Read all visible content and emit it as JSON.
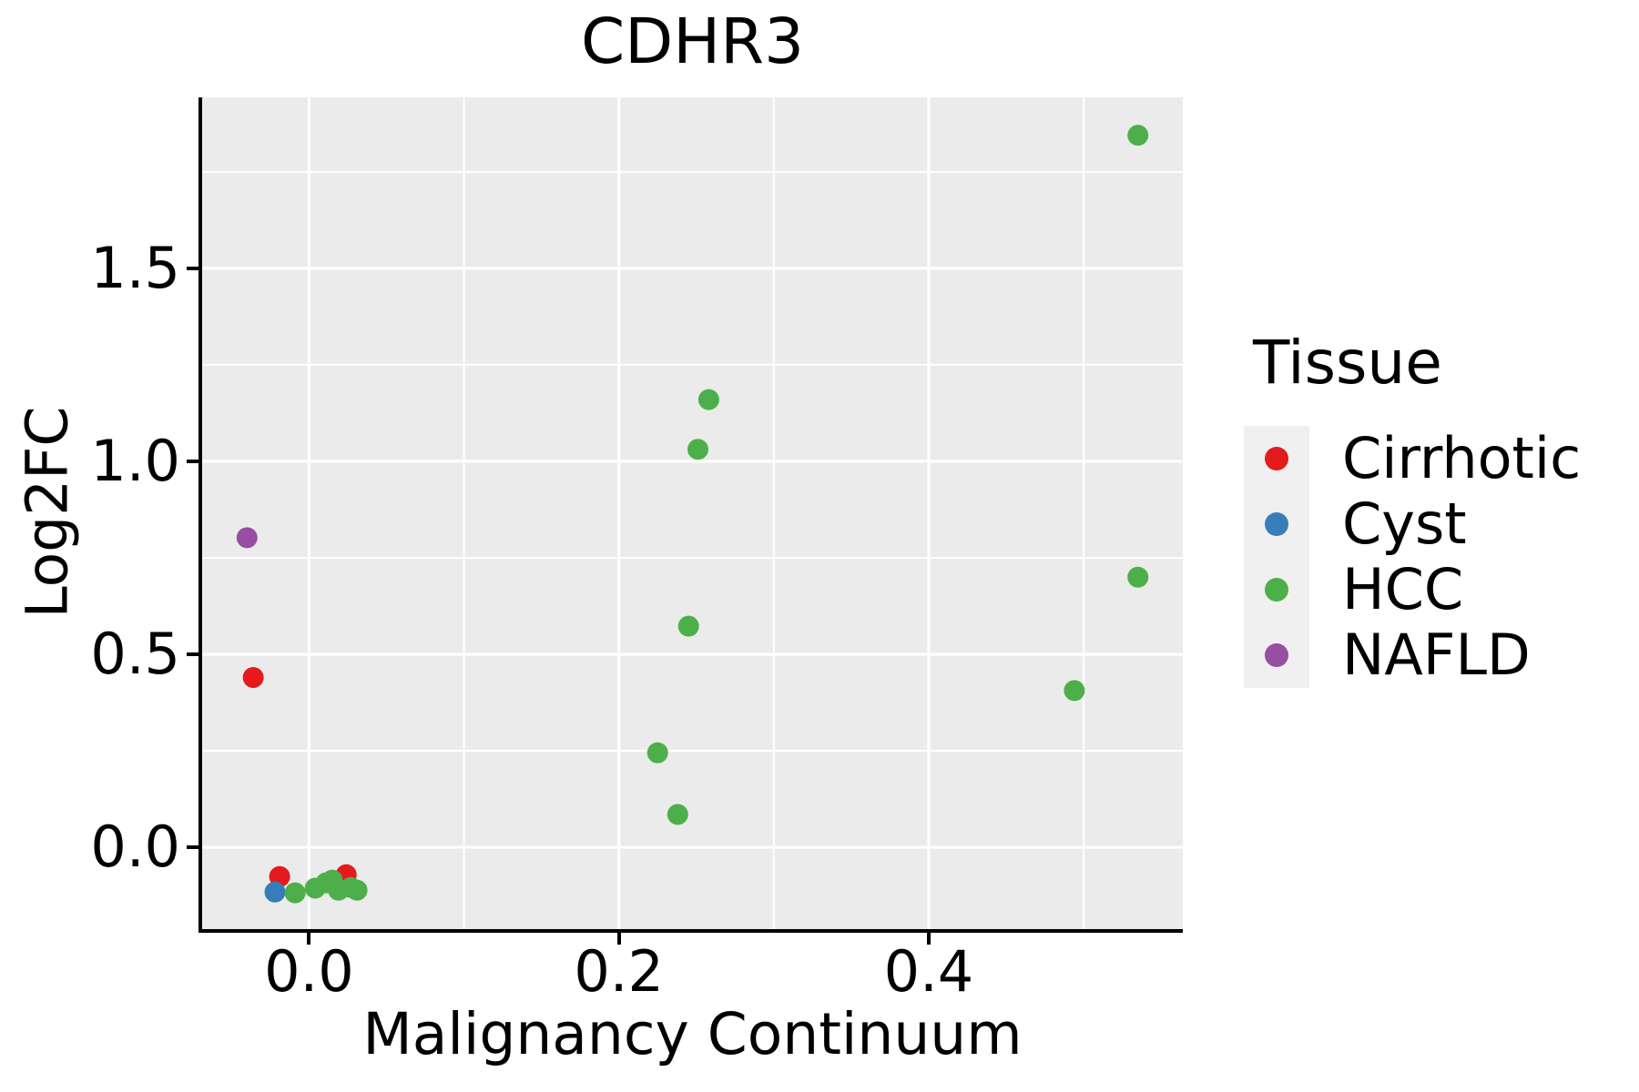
{
  "title": "CDHR3",
  "legend": {
    "title": "Tissue",
    "items": [
      {
        "label": "Cirrhotic",
        "color": "#E41A1C"
      },
      {
        "label": "Cyst",
        "color": "#377EB8"
      },
      {
        "label": "HCC",
        "color": "#4DAF4A"
      },
      {
        "label": "NAFLD",
        "color": "#984EA3"
      }
    ]
  },
  "styles": {
    "panel_bg": "#EBEBEB",
    "grid_color": "#FFFFFF",
    "legend_key_bg": "#F0F0F0",
    "spine_color": "#000000"
  },
  "chart_data": {
    "type": "scatter",
    "title": "CDHR3",
    "xlabel": "Malignancy Continuum",
    "ylabel": "Log2FC",
    "xlim": [
      -0.069,
      0.564
    ],
    "ylim": [
      -0.212,
      1.943
    ],
    "x_major_ticks": [
      0.0,
      0.2,
      0.4
    ],
    "x_tick_labels": [
      "0.0",
      "0.2",
      "0.4"
    ],
    "x_minor_ticks": [
      0.1,
      0.3,
      0.5
    ],
    "y_major_ticks": [
      0.0,
      0.5,
      1.0,
      1.5
    ],
    "y_tick_labels": [
      "0.0",
      "0.5",
      "1.0",
      "1.5"
    ],
    "y_minor_ticks": [
      0.25,
      0.75,
      1.25,
      1.75
    ],
    "grid": true,
    "legend_position": "right",
    "point_radius_px": 11.5,
    "series": [
      {
        "name": "Cirrhotic",
        "color": "#E41A1C",
        "points": [
          [
            -0.036,
            0.44
          ],
          [
            -0.019,
            -0.076
          ],
          [
            0.024,
            -0.071
          ]
        ]
      },
      {
        "name": "Cyst",
        "color": "#377EB8",
        "points": [
          [
            -0.022,
            -0.116
          ]
        ]
      },
      {
        "name": "HCC",
        "color": "#4DAF4A",
        "points": [
          [
            0.535,
            1.845
          ],
          [
            0.258,
            1.16
          ],
          [
            0.251,
            1.031
          ],
          [
            0.245,
            0.573
          ],
          [
            0.225,
            0.245
          ],
          [
            0.238,
            0.085
          ],
          [
            0.535,
            0.7
          ],
          [
            0.494,
            0.406
          ],
          [
            -0.009,
            -0.118
          ],
          [
            0.004,
            -0.106
          ],
          [
            0.011,
            -0.092
          ],
          [
            0.015,
            -0.085
          ],
          [
            0.019,
            -0.111
          ],
          [
            0.027,
            -0.104
          ],
          [
            0.031,
            -0.111
          ]
        ]
      },
      {
        "name": "NAFLD",
        "color": "#984EA3",
        "points": [
          [
            -0.04,
            0.802
          ]
        ]
      }
    ]
  }
}
